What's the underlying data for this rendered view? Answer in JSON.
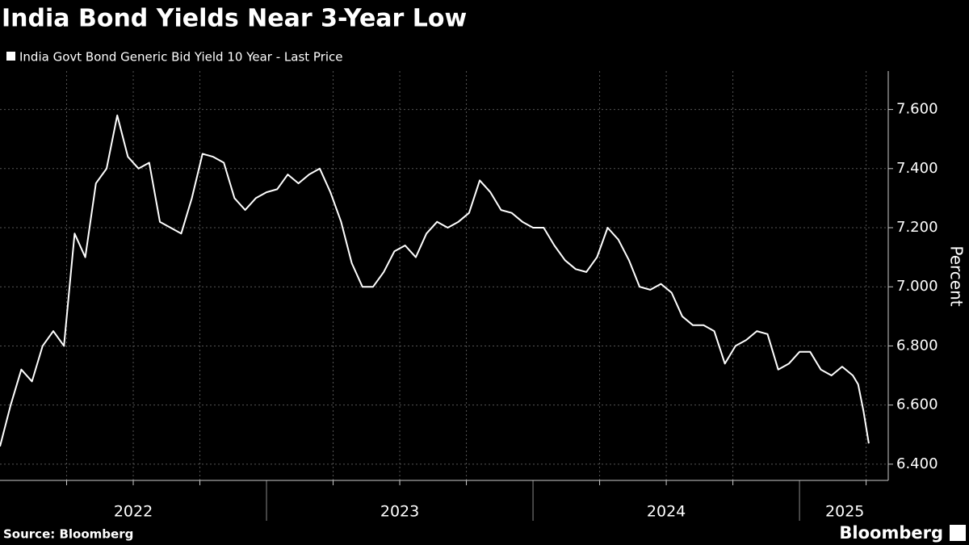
{
  "chart_data": {
    "type": "line",
    "title": "India Bond Yields Near 3-Year Low",
    "y_label": "Percent",
    "source": "Source: Bloomberg",
    "brand": "Bloomberg",
    "series": [
      {
        "name": "India Govt Bond Generic Bid Yield 10 Year - Last Price",
        "color": "#ffffff",
        "x": [
          2022.0,
          2022.04,
          2022.08,
          2022.12,
          2022.16,
          2022.2,
          2022.24,
          2022.28,
          2022.32,
          2022.36,
          2022.4,
          2022.44,
          2022.48,
          2022.52,
          2022.56,
          2022.6,
          2022.64,
          2022.68,
          2022.72,
          2022.76,
          2022.8,
          2022.84,
          2022.88,
          2022.92,
          2022.96,
          2023.0,
          2023.04,
          2023.08,
          2023.12,
          2023.16,
          2023.2,
          2023.24,
          2023.28,
          2023.32,
          2023.36,
          2023.4,
          2023.44,
          2023.48,
          2023.52,
          2023.56,
          2023.6,
          2023.64,
          2023.68,
          2023.72,
          2023.76,
          2023.8,
          2023.84,
          2023.88,
          2023.92,
          2023.96,
          2024.0,
          2024.04,
          2024.08,
          2024.12,
          2024.16,
          2024.2,
          2024.24,
          2024.28,
          2024.32,
          2024.36,
          2024.4,
          2024.44,
          2024.48,
          2024.52,
          2024.56,
          2024.6,
          2024.64,
          2024.68,
          2024.72,
          2024.76,
          2024.8,
          2024.84,
          2024.88,
          2024.92,
          2024.96,
          2025.0,
          2025.04,
          2025.08,
          2025.12,
          2025.16,
          2025.2,
          2025.22,
          2025.24,
          2025.26
        ],
        "values": [
          6.46,
          6.6,
          6.72,
          6.68,
          6.8,
          6.85,
          6.8,
          7.18,
          7.1,
          7.35,
          7.4,
          7.58,
          7.44,
          7.4,
          7.42,
          7.22,
          7.2,
          7.18,
          7.3,
          7.45,
          7.44,
          7.42,
          7.3,
          7.26,
          7.3,
          7.32,
          7.33,
          7.38,
          7.35,
          7.38,
          7.4,
          7.32,
          7.22,
          7.08,
          7.0,
          7.0,
          7.05,
          7.12,
          7.14,
          7.1,
          7.18,
          7.22,
          7.2,
          7.22,
          7.25,
          7.36,
          7.32,
          7.26,
          7.25,
          7.22,
          7.2,
          7.2,
          7.14,
          7.09,
          7.06,
          7.05,
          7.1,
          7.2,
          7.16,
          7.09,
          7.0,
          6.99,
          7.01,
          6.98,
          6.9,
          6.87,
          6.87,
          6.85,
          6.74,
          6.8,
          6.82,
          6.85,
          6.84,
          6.72,
          6.74,
          6.78,
          6.78,
          6.72,
          6.7,
          6.73,
          6.7,
          6.67,
          6.58,
          6.47
        ]
      }
    ],
    "xlim": [
      2022,
      2025.333
    ],
    "ylim": [
      6.345,
      7.73
    ],
    "yticks": [
      {
        "value": 6.4,
        "label": "6.400"
      },
      {
        "value": 6.6,
        "label": "6.600"
      },
      {
        "value": 6.8,
        "label": "6.800"
      },
      {
        "value": 7.0,
        "label": "7.000"
      },
      {
        "value": 7.2,
        "label": "7.200"
      },
      {
        "value": 7.4,
        "label": "7.400"
      },
      {
        "value": 7.6,
        "label": "7.600"
      }
    ],
    "xticks": [
      2023,
      2024,
      2025
    ],
    "xgrid": [
      2022.25,
      2022.5,
      2022.75,
      2023.25,
      2023.5,
      2023.75,
      2024.25,
      2024.5,
      2024.75,
      2025.25
    ],
    "year_labels": [
      {
        "value": 2022.5,
        "label": "2022"
      },
      {
        "value": 2023.5,
        "label": "2023"
      },
      {
        "value": 2024.5,
        "label": "2024"
      },
      {
        "value": 2025.17,
        "label": "2025"
      }
    ],
    "grid": true
  }
}
